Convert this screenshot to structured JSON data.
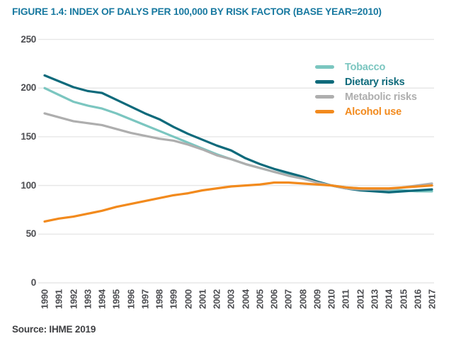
{
  "title": "FIGURE 1.4: INDEX OF DALYS PER 100,000 BY RISK FACTOR (BASE YEAR=2010)",
  "source": "Source: IHME 2019",
  "colors": {
    "title_teal": "#1879a0",
    "axis_text": "#4d4e52",
    "gridline": "#e7e7e7",
    "tobacco": "#7bc6c0",
    "dietary_risks": "#0e6a7b",
    "metabolic_risks": "#aeaeae",
    "alcohol_use": "#f28a1d"
  },
  "chart_data": {
    "type": "line",
    "title": "FIGURE 1.4: INDEX OF DALYS PER 100,000 BY RISK FACTOR (BASE YEAR=2010)",
    "xlabel": "",
    "ylabel": "",
    "ylim": [
      0,
      250
    ],
    "y_ticks": [
      0,
      50,
      100,
      150,
      200,
      250
    ],
    "grid": "horizontal",
    "legend_position": "top-right",
    "categories": [
      "1990",
      "1991",
      "1992",
      "1993",
      "1994",
      "1995",
      "1996",
      "1997",
      "1998",
      "1999",
      "2000",
      "2001",
      "2002",
      "2003",
      "2004",
      "2005",
      "2006",
      "2007",
      "2008",
      "2009",
      "2010",
      "2011",
      "2012",
      "2013",
      "2014",
      "2015",
      "2016",
      "2017"
    ],
    "series": [
      {
        "name": "Tobacco",
        "color": "#7bc6c0",
        "values": [
          200,
          193,
          186,
          182,
          179,
          174,
          168,
          162,
          156,
          150,
          144,
          138,
          132,
          127,
          122,
          118,
          114,
          111,
          107,
          104,
          100,
          98,
          97,
          96,
          95,
          95,
          94,
          94
        ]
      },
      {
        "name": "Dietary risks",
        "color": "#0e6a7b",
        "values": [
          213,
          207,
          201,
          197,
          195,
          188,
          181,
          174,
          168,
          160,
          153,
          147,
          141,
          136,
          128,
          122,
          117,
          113,
          109,
          104,
          100,
          97,
          95,
          94,
          93,
          94,
          95,
          96
        ]
      },
      {
        "name": "Metabolic risks",
        "color": "#aeaeae",
        "values": [
          174,
          170,
          166,
          164,
          162,
          158,
          154,
          151,
          148,
          146,
          142,
          137,
          131,
          127,
          122,
          118,
          114,
          110,
          107,
          103,
          100,
          97,
          96,
          96,
          96,
          98,
          100,
          102
        ]
      },
      {
        "name": "Alcohol use",
        "color": "#f28a1d",
        "values": [
          63,
          66,
          68,
          71,
          74,
          78,
          81,
          84,
          87,
          90,
          92,
          95,
          97,
          99,
          100,
          101,
          103,
          103,
          102,
          101,
          100,
          98,
          97,
          97,
          97,
          98,
          99,
          100
        ]
      }
    ]
  }
}
